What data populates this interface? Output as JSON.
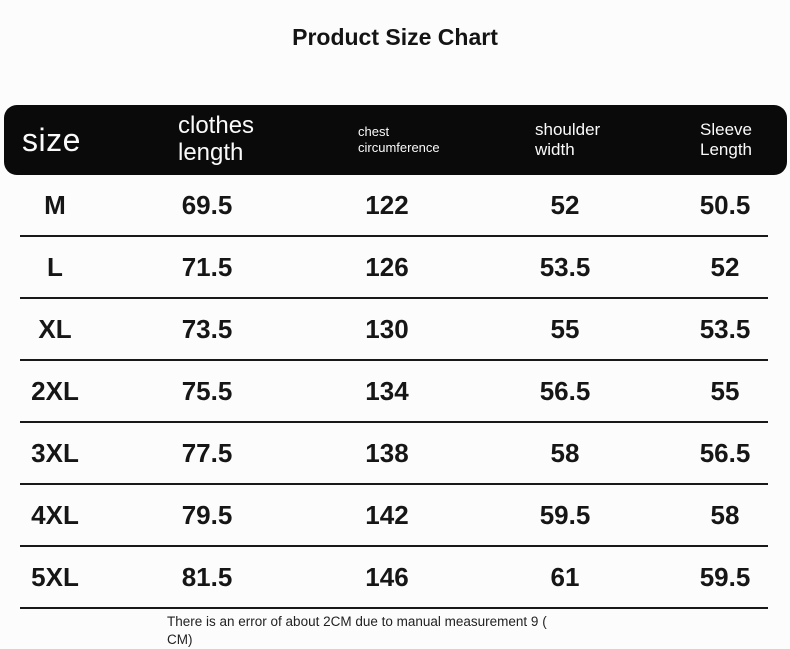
{
  "title": "Product Size Chart",
  "footer": {
    "line1": "There is an error of about 2CM due to manual measurement 9 (",
    "line2": "CM)"
  },
  "colors": {
    "page_background": "#fcfcfc",
    "header_bar_background": "#0a0a0a",
    "header_bar_text": "#fafafa",
    "body_text": "#161616",
    "row_divider": "#191919"
  },
  "chart_data": {
    "type": "table",
    "title": "Product Size Chart",
    "unit": "CM",
    "columns": [
      "size",
      "clothes length",
      "chest circumference",
      "shoulder width",
      "Sleeve Length"
    ],
    "rows": [
      [
        "M",
        69.5,
        122,
        52,
        50.5
      ],
      [
        "L",
        71.5,
        126,
        53.5,
        52
      ],
      [
        "XL",
        73.5,
        130,
        55,
        53.5
      ],
      [
        "2XL",
        75.5,
        134,
        56.5,
        55
      ],
      [
        "3XL",
        77.5,
        138,
        58,
        56.5
      ],
      [
        "4XL",
        79.5,
        142,
        59.5,
        58
      ],
      [
        "5XL",
        81.5,
        146,
        61,
        59.5
      ]
    ],
    "note": "There is an error of about 2CM due to manual measurement 9 (CM)"
  }
}
